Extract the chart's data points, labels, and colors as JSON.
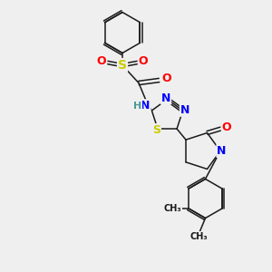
{
  "bg_color": "#efefef",
  "bond_color": "#1a1a1a",
  "atom_colors": {
    "N": "#0000ff",
    "O": "#ff0000",
    "S": "#cccc00",
    "H": "#4a9a9a",
    "C": "#1a1a1a"
  }
}
